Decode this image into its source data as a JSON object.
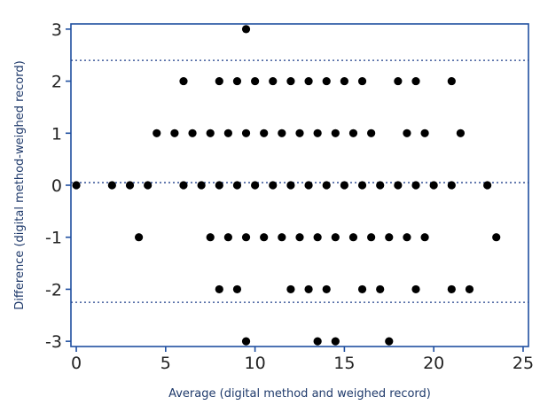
{
  "chart_data": {
    "type": "scatter",
    "title": "",
    "xlabel": "Average (digital method and weighed record)",
    "ylabel": "Difference (digital method-weighed record)",
    "xlim": [
      -0.3,
      25.3
    ],
    "ylim": [
      -3.1,
      3.1
    ],
    "x_ticks": [
      0,
      5,
      10,
      15,
      20,
      25
    ],
    "y_ticks": [
      -3,
      -2,
      -1,
      0,
      1,
      2,
      3
    ],
    "grid": false,
    "reference_lines": [
      2.4,
      0.05,
      -2.25
    ],
    "series": [
      {
        "points": [
          [
            9.5,
            3
          ],
          [
            6,
            2
          ],
          [
            8,
            2
          ],
          [
            9,
            2
          ],
          [
            10,
            2
          ],
          [
            11,
            2
          ],
          [
            12,
            2
          ],
          [
            13,
            2
          ],
          [
            14,
            2
          ],
          [
            15,
            2
          ],
          [
            16,
            2
          ],
          [
            18,
            2
          ],
          [
            19,
            2
          ],
          [
            21,
            2
          ],
          [
            4.5,
            1
          ],
          [
            5.5,
            1
          ],
          [
            6.5,
            1
          ],
          [
            7.5,
            1
          ],
          [
            8.5,
            1
          ],
          [
            9.5,
            1
          ],
          [
            10.5,
            1
          ],
          [
            11.5,
            1
          ],
          [
            12.5,
            1
          ],
          [
            13.5,
            1
          ],
          [
            14.5,
            1
          ],
          [
            15.5,
            1
          ],
          [
            16.5,
            1
          ],
          [
            18.5,
            1
          ],
          [
            19.5,
            1
          ],
          [
            21.5,
            1
          ],
          [
            0,
            0
          ],
          [
            2,
            0
          ],
          [
            3,
            0
          ],
          [
            4,
            0
          ],
          [
            6,
            0
          ],
          [
            7,
            0
          ],
          [
            8,
            0
          ],
          [
            9,
            0
          ],
          [
            10,
            0
          ],
          [
            11,
            0
          ],
          [
            12,
            0
          ],
          [
            13,
            0
          ],
          [
            14,
            0
          ],
          [
            15,
            0
          ],
          [
            16,
            0
          ],
          [
            17,
            0
          ],
          [
            18,
            0
          ],
          [
            19,
            0
          ],
          [
            20,
            0
          ],
          [
            21,
            0
          ],
          [
            23,
            0
          ],
          [
            3.5,
            -1
          ],
          [
            7.5,
            -1
          ],
          [
            8.5,
            -1
          ],
          [
            9.5,
            -1
          ],
          [
            10.5,
            -1
          ],
          [
            11.5,
            -1
          ],
          [
            12.5,
            -1
          ],
          [
            13.5,
            -1
          ],
          [
            14.5,
            -1
          ],
          [
            15.5,
            -1
          ],
          [
            16.5,
            -1
          ],
          [
            17.5,
            -1
          ],
          [
            18.5,
            -1
          ],
          [
            19.5,
            -1
          ],
          [
            23.5,
            -1
          ],
          [
            8,
            -2
          ],
          [
            9,
            -2
          ],
          [
            12,
            -2
          ],
          [
            13,
            -2
          ],
          [
            14,
            -2
          ],
          [
            16,
            -2
          ],
          [
            17,
            -2
          ],
          [
            19,
            -2
          ],
          [
            21,
            -2
          ],
          [
            22,
            -2
          ],
          [
            9.5,
            -3
          ],
          [
            13.5,
            -3
          ],
          [
            14.5,
            -3
          ],
          [
            17.5,
            -3
          ]
        ]
      }
    ]
  }
}
